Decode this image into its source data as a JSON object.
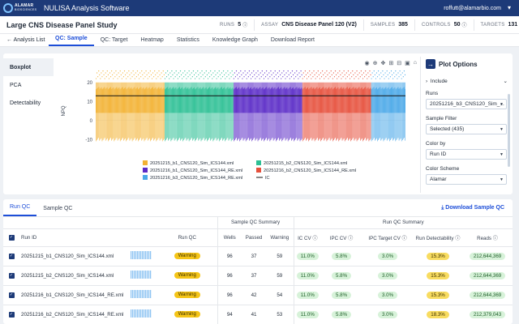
{
  "app": {
    "logo_main": "ALAMAR",
    "logo_sub": "BIOSCIENCES",
    "title": "NULISA Analysis Software",
    "user": "roffutt@alamarbio.com"
  },
  "study": {
    "title": "Large CNS Disease Panel Study",
    "runs_label": "RUNS",
    "runs_value": "5",
    "assay_label": "ASSAY",
    "assay_value": "CNS Disease Panel 120 (V2)",
    "samples_label": "SAMPLES",
    "samples_value": "385",
    "controls_label": "CONTROLS",
    "controls_value": "50",
    "targets_label": "TARGETS",
    "targets_value": "131"
  },
  "nav": {
    "back": "Analysis List",
    "tabs": [
      "QC: Sample",
      "QC: Target",
      "Heatmap",
      "Statistics",
      "Knowledge Graph",
      "Download Report"
    ]
  },
  "side_menu": [
    "Boxplot",
    "PCA",
    "Detectability"
  ],
  "chart_data": {
    "type": "boxplot",
    "ylabel": "NPQ",
    "ylim": [
      -15,
      25
    ],
    "yticks": [
      -10,
      0,
      10,
      20
    ],
    "ic_line": 13,
    "series": [
      {
        "name": "20251215_b1_CNS120_Sim_ICS144.xml",
        "color": "#f2b233",
        "count": 80,
        "median": 10,
        "q1": 4,
        "q3": 17,
        "lo": -10,
        "hi": 20
      },
      {
        "name": "20251215_b2_CNS120_Sim_ICS144.xml",
        "color": "#2dbf94",
        "count": 80,
        "median": 10,
        "q1": 4,
        "q3": 17,
        "lo": -10,
        "hi": 20
      },
      {
        "name": "20251216_b1_CNS120_Sim_ICS144_RE.xml",
        "color": "#5b2bc7",
        "count": 80,
        "median": 10,
        "q1": 4,
        "q3": 17,
        "lo": -10,
        "hi": 20
      },
      {
        "name": "20251216_b2_CNS120_Sim_ICS144_RE.xml",
        "color": "#e6503c",
        "count": 80,
        "median": 10,
        "q1": 4,
        "q3": 17,
        "lo": -10,
        "hi": 20
      },
      {
        "name": "20251216_b3_CNS120_Sim_ICS144_RE.xml",
        "color": "#4aa8e8",
        "count": 40,
        "median": 10,
        "q1": 4,
        "q3": 17,
        "lo": -10,
        "hi": 20
      }
    ],
    "reference_series": {
      "name": "IC",
      "color": "#111111"
    }
  },
  "plot_options": {
    "title": "Plot Options",
    "include": "Include",
    "runs_label": "Runs",
    "runs_value": "20251216_b3_CNS120_Sim_...",
    "sample_filter_label": "Sample Filter",
    "sample_filter_value": "Selected (435)",
    "color_by_label": "Color by",
    "color_by_value": "Run ID",
    "color_scheme_label": "Color Scheme",
    "color_scheme_value": "Alamar"
  },
  "bottom": {
    "tabs": [
      "Run QC",
      "Sample QC"
    ],
    "download": "Download Sample QC",
    "group_sample": "Sample QC Summary",
    "group_run": "Run QC Summary",
    "columns": {
      "run_id": "Run ID",
      "run_qc": "Run QC",
      "wells": "Wells",
      "passed": "Passed",
      "warning": "Warning",
      "ic_cv": "IC CV",
      "ipc_cv": "IPC CV",
      "ipc_target_cv": "IPC Target CV",
      "run_detect": "Run Detectability",
      "reads": "Reads"
    },
    "rows": [
      {
        "run_id": "20251215_b1_CNS120_Sim_ICS144.xml",
        "run_qc": "Warning",
        "wells": "96",
        "passed": "37",
        "warning": "59",
        "ic_cv": "11.0%",
        "ipc_cv": "5.8%",
        "ipc_target_cv": "3.0%",
        "run_detect": "15.3%",
        "reads": "212,644,369"
      },
      {
        "run_id": "20251215_b2_CNS120_Sim_ICS144.xml",
        "run_qc": "Warning",
        "wells": "96",
        "passed": "37",
        "warning": "59",
        "ic_cv": "11.0%",
        "ipc_cv": "5.8%",
        "ipc_target_cv": "3.0%",
        "run_detect": "15.3%",
        "reads": "212,644,369"
      },
      {
        "run_id": "20251216_b1_CNS120_Sim_ICS144_RE.xml",
        "run_qc": "Warning",
        "wells": "96",
        "passed": "42",
        "warning": "54",
        "ic_cv": "11.0%",
        "ipc_cv": "5.8%",
        "ipc_target_cv": "3.0%",
        "run_detect": "15.3%",
        "reads": "212,644,369"
      },
      {
        "run_id": "20251216_b2_CNS120_Sim_ICS144_RE.xml",
        "run_qc": "Warning",
        "wells": "94",
        "passed": "41",
        "warning": "53",
        "ic_cv": "11.0%",
        "ipc_cv": "5.8%",
        "ipc_target_cv": "3.0%",
        "run_detect": "18.3%",
        "reads": "212,379,043"
      }
    ]
  }
}
